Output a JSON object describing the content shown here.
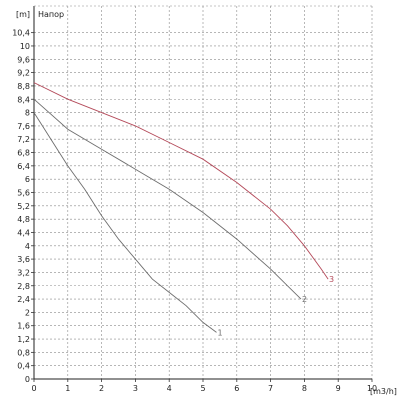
{
  "chart_data": {
    "type": "line",
    "title": "Напор",
    "xlabel": "[m3/h]",
    "ylabel": "[m]",
    "xlim": [
      0,
      10
    ],
    "ylim": [
      0,
      11.2
    ],
    "grid": true,
    "x_ticks": [
      "0",
      "1",
      "2",
      "3",
      "4",
      "5",
      "6",
      "7",
      "8",
      "9",
      "10"
    ],
    "y_ticks": [
      "0",
      "0,4",
      "0,8",
      "1,2",
      "1,6",
      "2",
      "2,4",
      "2,8",
      "3,2",
      "3,6",
      "4",
      "4,4",
      "4,8",
      "5,2",
      "5,6",
      "6",
      "6,4",
      "6,8",
      "7,2",
      "7,6",
      "8",
      "8,4",
      "8,8",
      "9,2",
      "9,6",
      "10",
      "10,4"
    ],
    "series": [
      {
        "name": "1",
        "color": "#6e6e6e",
        "points": [
          [
            0,
            8.0
          ],
          [
            0.5,
            7.2
          ],
          [
            1,
            6.4
          ],
          [
            1.5,
            5.7
          ],
          [
            2,
            4.9
          ],
          [
            2.5,
            4.2
          ],
          [
            3,
            3.6
          ],
          [
            3.5,
            3.0
          ],
          [
            4,
            2.6
          ],
          [
            4.5,
            2.2
          ],
          [
            5,
            1.7
          ],
          [
            5.4,
            1.4
          ]
        ]
      },
      {
        "name": "2",
        "color": "#6e6e6e",
        "points": [
          [
            0,
            8.4
          ],
          [
            1,
            7.5
          ],
          [
            2,
            6.9
          ],
          [
            3,
            6.3
          ],
          [
            4,
            5.7
          ],
          [
            5,
            5.0
          ],
          [
            6,
            4.2
          ],
          [
            7,
            3.3
          ],
          [
            7.5,
            2.8
          ],
          [
            7.9,
            2.4
          ]
        ]
      },
      {
        "name": "3",
        "color": "#b44a5a",
        "points": [
          [
            0,
            8.9
          ],
          [
            1,
            8.4
          ],
          [
            2,
            8.0
          ],
          [
            3,
            7.6
          ],
          [
            4,
            7.1
          ],
          [
            5,
            6.6
          ],
          [
            6,
            5.9
          ],
          [
            7,
            5.1
          ],
          [
            7.5,
            4.6
          ],
          [
            8,
            4.0
          ],
          [
            8.5,
            3.3
          ],
          [
            8.7,
            3.0
          ]
        ]
      }
    ]
  }
}
